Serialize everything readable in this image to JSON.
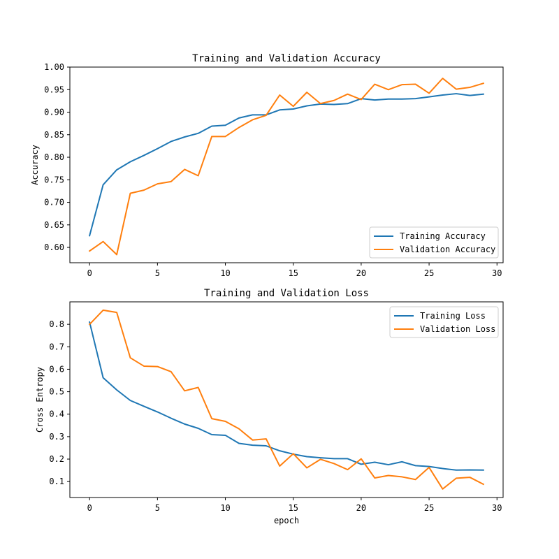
{
  "chart_data": [
    {
      "type": "line",
      "title": "Training and Validation Accuracy",
      "xlabel": "",
      "ylabel": "Accuracy",
      "xlim": [
        -1.45,
        30.45
      ],
      "ylim": [
        0.566,
        1.0
      ],
      "xticks": [
        "0",
        "5",
        "10",
        "15",
        "20",
        "25",
        "30"
      ],
      "yticks": [
        "0.60",
        "0.65",
        "0.70",
        "0.75",
        "0.80",
        "0.85",
        "0.90",
        "0.95",
        "1.00"
      ],
      "legend_position": "lower-right",
      "grid": false,
      "x": [
        0,
        1,
        2,
        3,
        4,
        5,
        6,
        7,
        8,
        9,
        10,
        11,
        12,
        13,
        14,
        15,
        16,
        17,
        18,
        19,
        20,
        21,
        22,
        23,
        24,
        25,
        26,
        27,
        28,
        29
      ],
      "series": [
        {
          "name": "Training Accuracy",
          "color": "#1f77b4",
          "values": [
            0.626,
            0.739,
            0.772,
            0.79,
            0.804,
            0.819,
            0.835,
            0.845,
            0.853,
            0.869,
            0.871,
            0.887,
            0.894,
            0.894,
            0.905,
            0.907,
            0.914,
            0.918,
            0.917,
            0.919,
            0.93,
            0.927,
            0.929,
            0.929,
            0.93,
            0.934,
            0.938,
            0.941,
            0.937,
            0.94
          ]
        },
        {
          "name": "Validation Accuracy",
          "color": "#ff7f0e",
          "values": [
            0.592,
            0.613,
            0.584,
            0.72,
            0.727,
            0.741,
            0.746,
            0.773,
            0.759,
            0.846,
            0.846,
            0.866,
            0.883,
            0.893,
            0.938,
            0.913,
            0.944,
            0.919,
            0.926,
            0.94,
            0.928,
            0.962,
            0.95,
            0.961,
            0.962,
            0.942,
            0.975,
            0.951,
            0.955,
            0.964
          ]
        }
      ]
    },
    {
      "type": "line",
      "title": "Training and Validation Loss",
      "xlabel": "epoch",
      "ylabel": "Cross Entropy",
      "xlim": [
        -1.45,
        30.45
      ],
      "ylim": [
        0.029,
        0.9
      ],
      "xticks": [
        "0",
        "5",
        "10",
        "15",
        "20",
        "25",
        "30"
      ],
      "yticks": [
        "0.1",
        "0.2",
        "0.3",
        "0.4",
        "0.5",
        "0.6",
        "0.7",
        "0.8"
      ],
      "legend_position": "upper-right",
      "grid": false,
      "x": [
        0,
        1,
        2,
        3,
        4,
        5,
        6,
        7,
        8,
        9,
        10,
        11,
        12,
        13,
        14,
        15,
        16,
        17,
        18,
        19,
        20,
        21,
        22,
        23,
        24,
        25,
        26,
        27,
        28,
        29
      ],
      "series": [
        {
          "name": "Training Loss",
          "color": "#1f77b4",
          "values": [
            0.81,
            0.562,
            0.508,
            0.461,
            0.435,
            0.41,
            0.382,
            0.356,
            0.337,
            0.309,
            0.306,
            0.27,
            0.262,
            0.259,
            0.237,
            0.222,
            0.211,
            0.206,
            0.202,
            0.202,
            0.177,
            0.186,
            0.175,
            0.188,
            0.171,
            0.167,
            0.158,
            0.151,
            0.152,
            0.151
          ]
        },
        {
          "name": "Validation Loss",
          "color": "#ff7f0e",
          "values": [
            0.8,
            0.863,
            0.853,
            0.651,
            0.614,
            0.612,
            0.589,
            0.504,
            0.519,
            0.38,
            0.368,
            0.335,
            0.285,
            0.29,
            0.169,
            0.224,
            0.161,
            0.199,
            0.18,
            0.153,
            0.201,
            0.116,
            0.127,
            0.121,
            0.109,
            0.163,
            0.067,
            0.115,
            0.119,
            0.088
          ]
        }
      ]
    }
  ]
}
